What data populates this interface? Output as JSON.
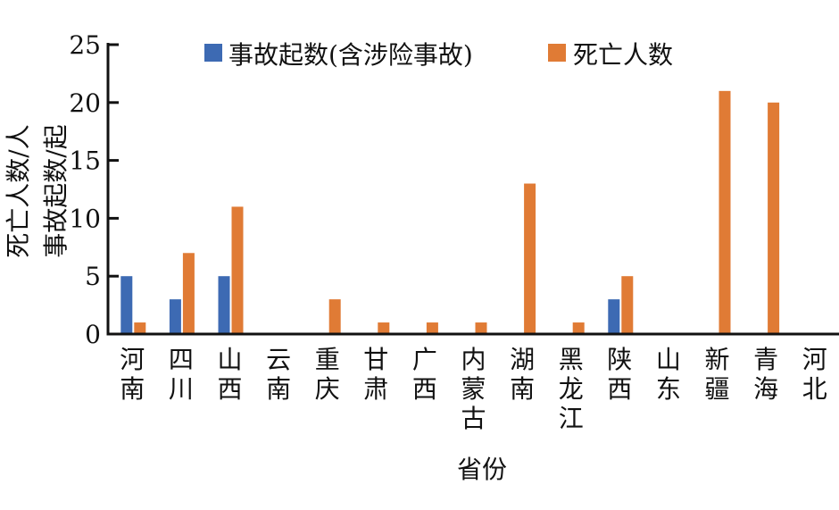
{
  "chart_data": {
    "type": "bar",
    "title": "",
    "xlabel": "省份",
    "ylabel": [
      "死亡人数/人",
      "事故起数/起"
    ],
    "ylim": [
      0,
      25
    ],
    "yticks": [
      0,
      5,
      10,
      15,
      20,
      25
    ],
    "grid": false,
    "legend_position": "top",
    "categories": [
      "河南",
      "四川",
      "山西",
      "云南",
      "重庆",
      "甘肃",
      "广西",
      "内蒙古",
      "湖南",
      "黑龙江",
      "陕西",
      "山东",
      "新疆",
      "青海",
      "河北"
    ],
    "series": [
      {
        "name": "事故起数(含涉险事故)",
        "color": "#3d6ab3",
        "values": [
          5,
          3,
          5,
          0,
          0,
          0,
          0,
          0,
          0,
          0,
          3,
          0,
          0,
          0,
          0
        ]
      },
      {
        "name": "死亡人数",
        "color": "#e07b35",
        "values": [
          1,
          7,
          11,
          0,
          3,
          1,
          1,
          1,
          13,
          1,
          5,
          0,
          21,
          20,
          0
        ]
      }
    ]
  }
}
